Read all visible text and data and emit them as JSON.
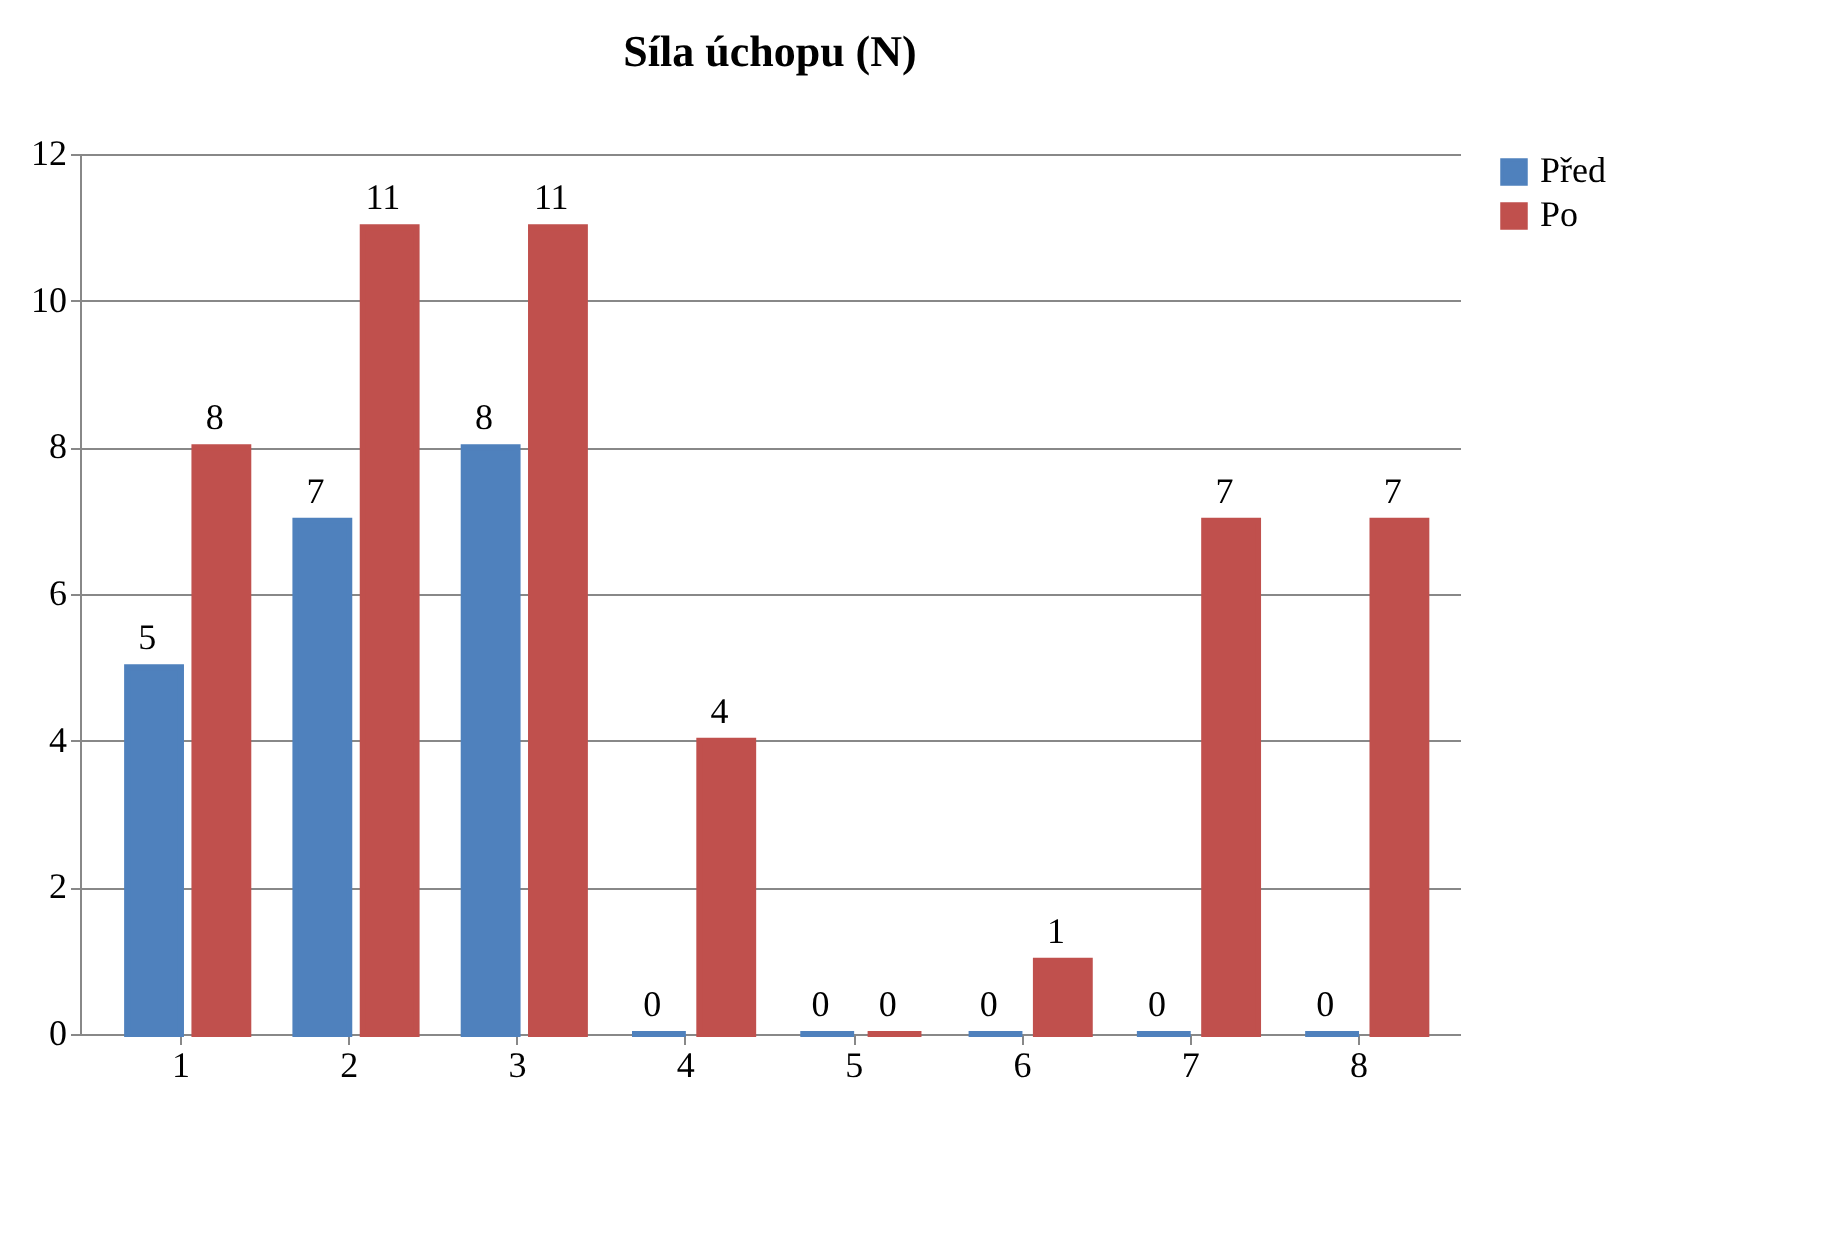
{
  "chart_data": {
    "type": "bar",
    "title": "Síla úchopu (N)",
    "categories": [
      "1",
      "2",
      "3",
      "4",
      "5",
      "6",
      "7",
      "8"
    ],
    "series": [
      {
        "name": "Před",
        "color": "#4f81bd",
        "values": [
          5,
          7,
          8,
          0,
          0,
          0,
          0,
          0
        ]
      },
      {
        "name": "Po",
        "color": "#c0504d",
        "values": [
          8,
          11,
          11,
          4,
          0,
          1,
          7,
          7
        ]
      }
    ],
    "ylim": [
      0,
      12
    ],
    "yticks": [
      0,
      2,
      4,
      6,
      8,
      10,
      12
    ],
    "grid": "y",
    "legend": "right",
    "data_labels": true
  }
}
